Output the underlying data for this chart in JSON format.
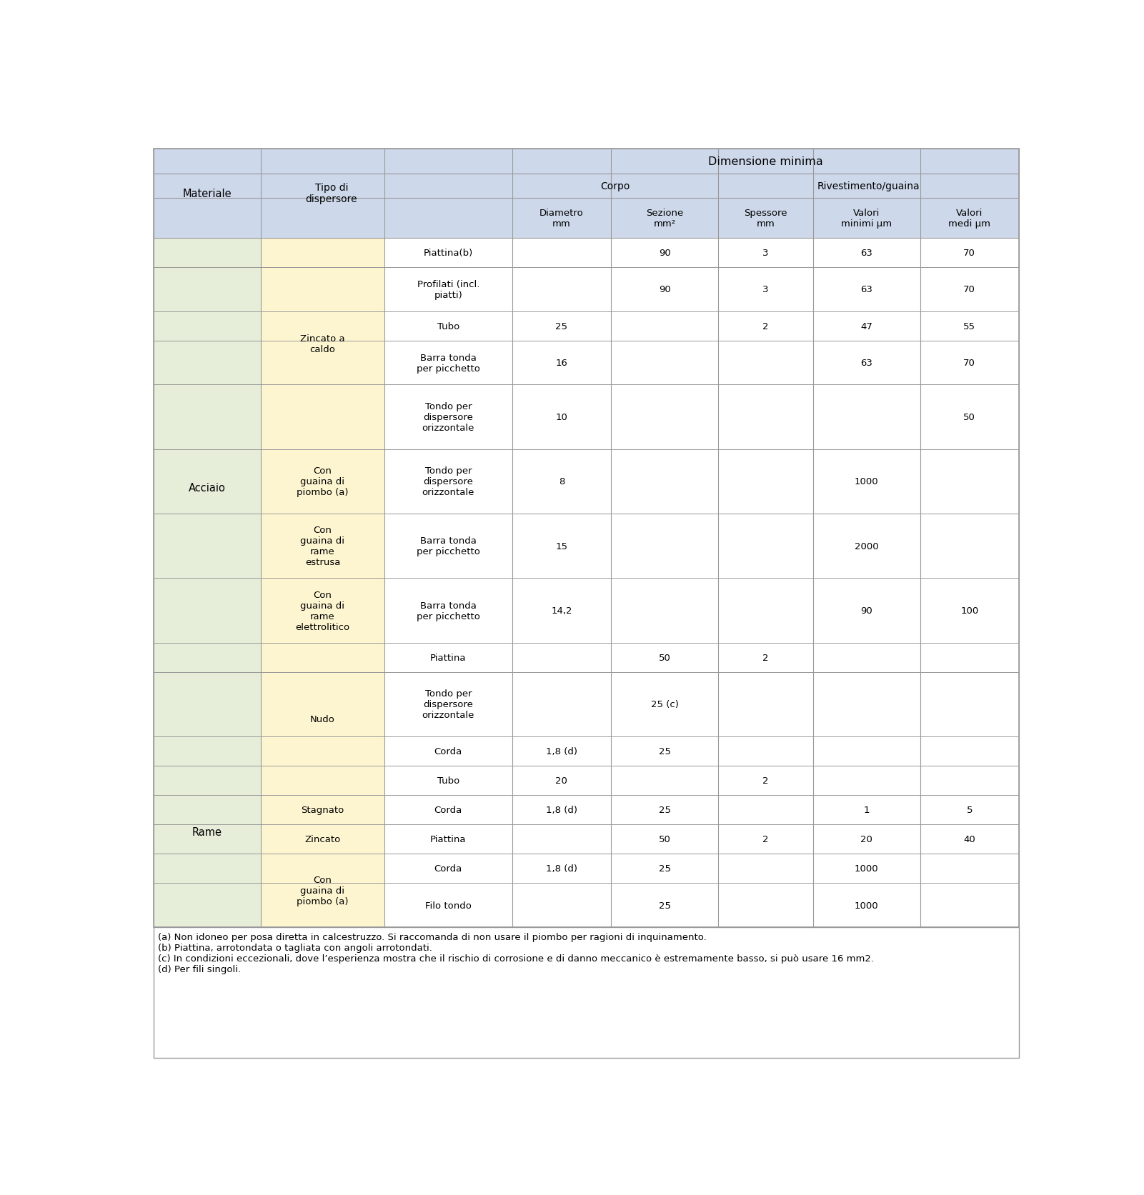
{
  "header_bg": "#cdd8ea",
  "yellow_bg": "#fdf5d0",
  "green_bg": "#e6edd8",
  "white_bg": "#ffffff",
  "border_color": "#999999",
  "footnote_text": "(a) Non idoneo per posa diretta in calcestruzzo. Si raccomanda di non usare il piombo per ragioni di inquinamento.\n(b) Piattina, arrotondata o tagliata con angoli arrotondati.\n(c) In condizioni eccezionali, dove l’esperienza mostra che il rischio di corrosione e di danno meccanico è estremamente basso, si può usare 16 mm2.\n(d) Per fili singoli.",
  "tipo_labels": [
    "Piattina(b)",
    "Profilati (incl.\npiatti)",
    "Tubo",
    "Barra tonda\nper picchetto",
    "Tondo per\ndispersore\norizzontale",
    "Tondo per\ndispersore\norizzontale",
    "Barra tonda\nper picchetto",
    "Barra tonda\nper picchetto",
    "Piattina",
    "Tondo per\ndispersore\norizzontale",
    "Corda",
    "Tubo",
    "Corda",
    "Piattina",
    "Corda",
    "Filo tondo"
  ],
  "data_values": [
    [
      "",
      "90",
      "3",
      "63",
      "70"
    ],
    [
      "",
      "90",
      "3",
      "63",
      "70"
    ],
    [
      "25",
      "",
      "2",
      "47",
      "55"
    ],
    [
      "16",
      "",
      "",
      "63",
      "70"
    ],
    [
      "10",
      "",
      "",
      "",
      "50"
    ],
    [
      "8",
      "",
      "",
      "1000",
      ""
    ],
    [
      "15",
      "",
      "",
      "2000",
      ""
    ],
    [
      "14,2",
      "",
      "",
      "90",
      "100"
    ],
    [
      "",
      "50",
      "2",
      "",
      ""
    ],
    [
      "",
      "25 (c)",
      "",
      "",
      ""
    ],
    [
      "1,8 (d)",
      "25",
      "",
      "",
      ""
    ],
    [
      "20",
      "",
      "2",
      "",
      ""
    ],
    [
      "1,8 (d)",
      "25",
      "",
      "1",
      "5"
    ],
    [
      "",
      "50",
      "2",
      "20",
      "40"
    ],
    [
      "1,8 (d)",
      "25",
      "",
      "1000",
      ""
    ],
    [
      "",
      "25",
      "",
      "1000",
      ""
    ]
  ],
  "mat_groups": [
    {
      "label": "Acciaio",
      "start": 0,
      "end": 9
    },
    {
      "label": "Rame",
      "start": 10,
      "end": 15
    }
  ],
  "sub_groups": [
    {
      "label": "Zincato a\ncaldo",
      "start": 0,
      "end": 4
    },
    {
      "label": "Con\nguaina di\npiombo (a)",
      "start": 5,
      "end": 5
    },
    {
      "label": "Con\nguaina di\nrame\nestrusa",
      "start": 6,
      "end": 6
    },
    {
      "label": "Con\nguaina di\nrame\nelettrolitico",
      "start": 7,
      "end": 7
    },
    {
      "label": "Nudo",
      "start": 8,
      "end": 11
    },
    {
      "label": "Stagnato",
      "start": 12,
      "end": 12
    },
    {
      "label": "Zincato",
      "start": 13,
      "end": 13
    },
    {
      "label": "Con\nguaina di\npiombo (a)",
      "start": 14,
      "end": 15
    }
  ],
  "row_heights_rel": [
    1.0,
    1.5,
    1.0,
    1.5,
    2.2,
    2.2,
    2.2,
    2.2,
    1.0,
    2.2,
    1.0,
    1.0,
    1.0,
    1.0,
    1.0,
    1.5
  ]
}
